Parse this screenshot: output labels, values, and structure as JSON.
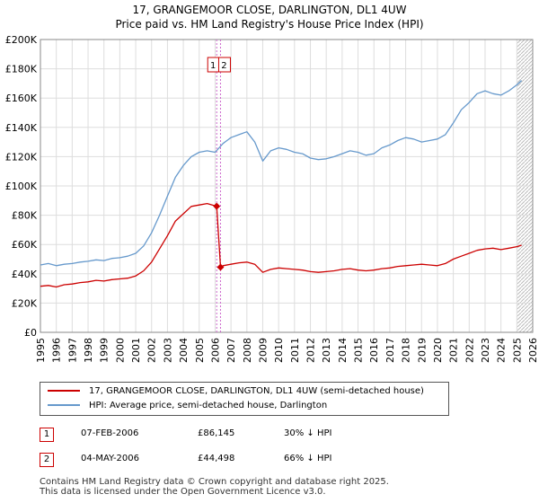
{
  "title_line1": "17, GRANGEMOOR CLOSE, DARLINGTON, DL1 4UW",
  "title_line2": "Price paid vs. HM Land Registry's House Price Index (HPI)",
  "colors": {
    "price_line": "#cc0000",
    "hpi_line": "#6699cc",
    "marker": "#cc0000",
    "grid": "#dddddd"
  },
  "legend": {
    "price_label": "17, GRANGEMOOR CLOSE, DARLINGTON, DL1 4UW (semi-detached house)",
    "hpi_label": "HPI: Average price, semi-detached house, Darlington"
  },
  "sales": [
    {
      "num": "1",
      "date": "07-FEB-2006",
      "price": "£86,145",
      "hpi": "30% ↓ HPI"
    },
    {
      "num": "2",
      "date": "04-MAY-2006",
      "price": "£44,498",
      "hpi": "66% ↓ HPI"
    }
  ],
  "footer_line1": "Contains HM Land Registry data © Crown copyright and database right 2025.",
  "footer_line2": "This data is licensed under the Open Government Licence v3.0.",
  "chart_data": {
    "type": "line",
    "title": "17, GRANGEMOOR CLOSE, DARLINGTON, DL1 4UW",
    "subtitle": "Price paid vs. HM Land Registry's House Price Index (HPI)",
    "xlim": [
      1995,
      2026
    ],
    "ylim": [
      0,
      200000
    ],
    "x_ticks": [
      1995,
      1996,
      1997,
      1998,
      1999,
      2000,
      2001,
      2002,
      2003,
      2004,
      2005,
      2006,
      2007,
      2008,
      2009,
      2010,
      2011,
      2012,
      2013,
      2014,
      2015,
      2016,
      2017,
      2018,
      2019,
      2020,
      2021,
      2022,
      2023,
      2024,
      2025,
      2026
    ],
    "y_ticks": [
      0,
      20000,
      40000,
      60000,
      80000,
      100000,
      120000,
      140000,
      160000,
      180000,
      200000
    ],
    "y_tick_labels": [
      "£0",
      "£20K",
      "£40K",
      "£60K",
      "£80K",
      "£100K",
      "£120K",
      "£140K",
      "£160K",
      "£180K",
      "£200K"
    ],
    "grid": true,
    "hatch_from": 2025.0,
    "series": [
      {
        "name": "17, GRANGEMOOR CLOSE, DARLINGTON, DL1 4UW (semi-detached house)",
        "color": "#cc0000",
        "x": [
          1995.0,
          1995.5,
          1996.0,
          1996.5,
          1997.0,
          1997.5,
          1998.0,
          1998.5,
          1999.0,
          1999.5,
          2000.0,
          2000.5,
          2001.0,
          2001.5,
          2002.0,
          2002.5,
          2003.0,
          2003.5,
          2004.0,
          2004.5,
          2005.0,
          2005.5,
          2006.1,
          2006.34,
          2006.5,
          2007.0,
          2007.5,
          2008.0,
          2008.5,
          2009.0,
          2009.5,
          2010.0,
          2010.5,
          2011.0,
          2011.5,
          2012.0,
          2012.5,
          2013.0,
          2013.5,
          2014.0,
          2014.5,
          2015.0,
          2015.5,
          2016.0,
          2016.5,
          2017.0,
          2017.5,
          2018.0,
          2018.5,
          2019.0,
          2019.5,
          2020.0,
          2020.5,
          2021.0,
          2021.5,
          2022.0,
          2022.5,
          2023.0,
          2023.5,
          2024.0,
          2024.5,
          2025.0,
          2025.3
        ],
        "y": [
          31500,
          32000,
          31000,
          32500,
          33000,
          34000,
          34500,
          35500,
          35000,
          36000,
          36500,
          37000,
          38500,
          42000,
          48000,
          57000,
          66000,
          76000,
          81000,
          86000,
          87000,
          88000,
          86145,
          44498,
          45500,
          46500,
          47500,
          48000,
          46500,
          41000,
          43000,
          44000,
          43500,
          43000,
          42500,
          41500,
          41000,
          41500,
          42000,
          43000,
          43500,
          42500,
          42000,
          42500,
          43500,
          44000,
          45000,
          45500,
          46000,
          46500,
          46000,
          45500,
          47000,
          50000,
          52000,
          54000,
          56000,
          57000,
          57500,
          56500,
          57500,
          58500,
          59500
        ]
      },
      {
        "name": "HPI: Average price, semi-detached house, Darlington",
        "color": "#6699cc",
        "x": [
          1995.0,
          1995.5,
          1996.0,
          1996.5,
          1997.0,
          1997.5,
          1998.0,
          1998.5,
          1999.0,
          1999.5,
          2000.0,
          2000.5,
          2001.0,
          2001.5,
          2002.0,
          2002.5,
          2003.0,
          2003.5,
          2004.0,
          2004.5,
          2005.0,
          2005.5,
          2006.0,
          2006.5,
          2007.0,
          2007.5,
          2008.0,
          2008.5,
          2009.0,
          2009.5,
          2010.0,
          2010.5,
          2011.0,
          2011.5,
          2012.0,
          2012.5,
          2013.0,
          2013.5,
          2014.0,
          2014.5,
          2015.0,
          2015.5,
          2016.0,
          2016.5,
          2017.0,
          2017.5,
          2018.0,
          2018.5,
          2019.0,
          2019.5,
          2020.0,
          2020.5,
          2021.0,
          2021.5,
          2022.0,
          2022.5,
          2023.0,
          2023.5,
          2024.0,
          2024.5,
          2025.0,
          2025.3
        ],
        "y": [
          46000,
          47000,
          45500,
          46500,
          47000,
          48000,
          48500,
          49500,
          49000,
          50500,
          51000,
          52000,
          54000,
          59000,
          68000,
          80000,
          93000,
          106000,
          114000,
          120000,
          123000,
          124000,
          123000,
          129000,
          133000,
          135000,
          137000,
          130000,
          117000,
          124000,
          126000,
          125000,
          123000,
          122000,
          119000,
          118000,
          118500,
          120000,
          122000,
          124000,
          123000,
          121000,
          122000,
          126000,
          128000,
          131000,
          133000,
          132000,
          130000,
          131000,
          132000,
          135000,
          143000,
          152000,
          157000,
          163000,
          165000,
          163000,
          162000,
          165000,
          169000,
          172000
        ]
      }
    ],
    "markers": [
      {
        "label": "1",
        "x": 2006.1,
        "y": 86145
      },
      {
        "label": "2",
        "x": 2006.34,
        "y": 44498
      }
    ]
  }
}
